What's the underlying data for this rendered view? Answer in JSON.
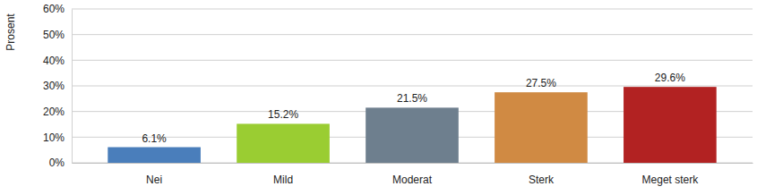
{
  "chart_data": {
    "type": "bar",
    "y_label": "Prosent",
    "categories": [
      "Nei",
      "Mild",
      "Moderat",
      "Sterk",
      "Meget sterk"
    ],
    "values": [
      6.1,
      15.2,
      21.5,
      27.5,
      29.6
    ],
    "value_labels": [
      "6.1%",
      "15.2%",
      "21.5%",
      "27.5%",
      "29.6%"
    ],
    "colors": [
      "#4a7ebb",
      "#9acd32",
      "#6e7f8e",
      "#d08a43",
      "#b22222"
    ],
    "ylim": [
      0,
      60
    ],
    "yticks": [
      {
        "value": 0,
        "label": "0%"
      },
      {
        "value": 10,
        "label": "10%"
      },
      {
        "value": 20,
        "label": "20%"
      },
      {
        "value": 30,
        "label": "30%"
      },
      {
        "value": 40,
        "label": "40%"
      },
      {
        "value": 50,
        "label": "50%"
      },
      {
        "value": 60,
        "label": "60%"
      }
    ],
    "grid": true,
    "data_labels": true
  }
}
